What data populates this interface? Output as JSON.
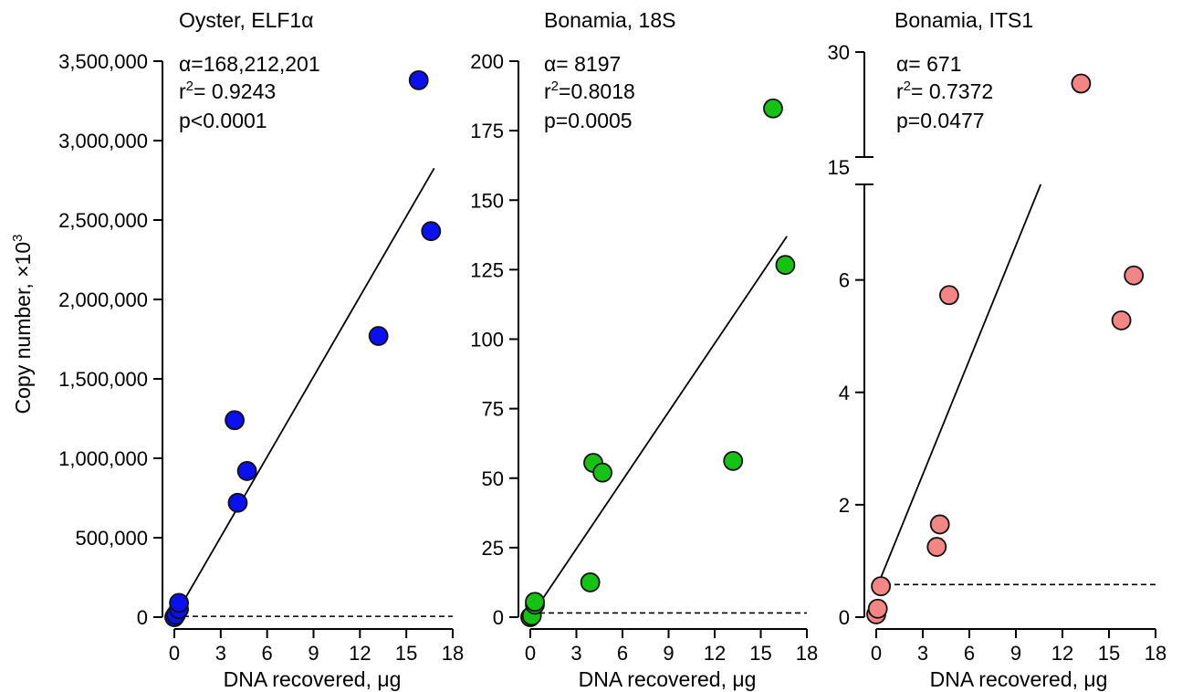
{
  "ylabel_main": "Copy number, ×10",
  "ylabel_exp": "3",
  "colors": {
    "oyster": "#0a10ee",
    "bonamia18s": "#16c214",
    "its1": "#f28684",
    "marker_edge": "#111111"
  },
  "chart_data": [
    {
      "type": "scatter",
      "title": "Oyster, ELF1α",
      "xlabel": "DNA recovered, μg",
      "stats": {
        "alpha": "α=168,212,201",
        "r2_pre": "r",
        "r2_sup": "2",
        "r2_post": "= 0.9243",
        "p": "p<0.0001"
      },
      "xlim": [
        0,
        18
      ],
      "x_ticks": [
        0,
        3,
        6,
        9,
        12,
        15,
        18
      ],
      "ylim": [
        0,
        3500000
      ],
      "y_ticks": [
        0,
        500000,
        1000000,
        1500000,
        2000000,
        2500000,
        3000000,
        3500000
      ],
      "y_tick_labels": [
        "0",
        "500,000",
        "1,000,000",
        "1,500,000",
        "2,000,000",
        "2,500,000",
        "3,000,000",
        "3,500,000"
      ],
      "points": [
        [
          0,
          0
        ],
        [
          0.1,
          15000
        ],
        [
          0.3,
          50000
        ],
        [
          0.3,
          90000
        ],
        [
          3.9,
          1240000
        ],
        [
          4.1,
          720000
        ],
        [
          4.7,
          920000
        ],
        [
          13.2,
          1770000
        ],
        [
          15.8,
          3380000
        ],
        [
          16.6,
          2430000
        ]
      ],
      "fit_line": [
        [
          0,
          0
        ],
        [
          16.8,
          2826000
        ]
      ],
      "baseline": 5000
    },
    {
      "type": "scatter",
      "title": "Bonamia, 18S",
      "xlabel": "DNA recovered, μg",
      "stats": {
        "alpha": "α= 8197",
        "r2_pre": "r",
        "r2_sup": "2",
        "r2_post": "=0.8018",
        "p": "p=0.0005"
      },
      "xlim": [
        0,
        18
      ],
      "x_ticks": [
        0,
        3,
        6,
        9,
        12,
        15,
        18
      ],
      "ylim": [
        0,
        200
      ],
      "y_ticks": [
        0,
        25,
        50,
        75,
        100,
        125,
        150,
        175,
        200
      ],
      "y_tick_labels": [
        "0",
        "25",
        "50",
        "75",
        "100",
        "125",
        "150",
        "175",
        "200"
      ],
      "points": [
        [
          0,
          0
        ],
        [
          0.1,
          0.5
        ],
        [
          0.3,
          4.5
        ],
        [
          0.3,
          5.5
        ],
        [
          3.9,
          12.5
        ],
        [
          4.1,
          55.5
        ],
        [
          4.7,
          52
        ],
        [
          13.2,
          56.2
        ],
        [
          15.8,
          183
        ],
        [
          16.6,
          126.7
        ]
      ],
      "fit_line": [
        [
          0,
          0
        ],
        [
          16.7,
          137
        ]
      ],
      "baseline": 1.5
    },
    {
      "type": "scatter",
      "title": "Bonamia, ITS1",
      "xlabel": "DNA recovered, μg",
      "stats": {
        "alpha": "α= 671",
        "r2_pre": "r",
        "r2_sup": "2",
        "r2_post": "= 0.7372",
        "p": "p=0.0477"
      },
      "xlim": [
        0,
        18
      ],
      "x_ticks": [
        0,
        3,
        6,
        9,
        12,
        15,
        18
      ],
      "ylim": [
        0,
        7.7
      ],
      "y_ticks": [
        0,
        2,
        4,
        6
      ],
      "y_tick_labels": [
        "0",
        "2",
        "4",
        "6"
      ],
      "y_break": {
        "lower_max": 7.7,
        "upper_range": [
          15,
          30
        ],
        "upper_tick_labels": [
          "15",
          "30"
        ]
      },
      "points": [
        [
          0,
          0.05
        ],
        [
          0.1,
          0.15
        ],
        [
          0.3,
          0.55
        ],
        [
          3.9,
          1.25
        ],
        [
          4.1,
          1.65
        ],
        [
          4.7,
          5.73
        ],
        [
          13.2,
          25.5
        ],
        [
          15.8,
          5.28
        ],
        [
          16.6,
          6.08
        ]
      ],
      "fit_line": [
        [
          0,
          0.5
        ],
        [
          10.6,
          7.7
        ]
      ],
      "baseline": 0.58
    }
  ]
}
